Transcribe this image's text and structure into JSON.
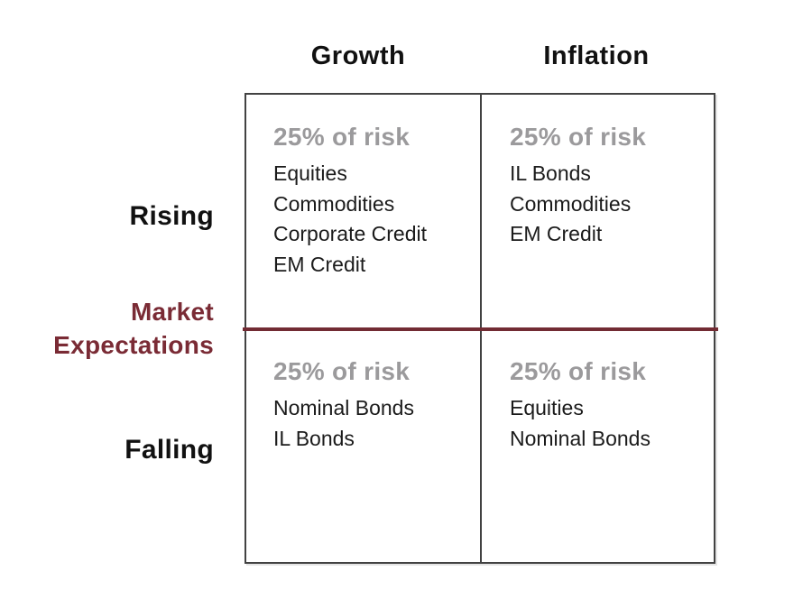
{
  "matrix": {
    "column_headers": {
      "growth": "Growth",
      "inflation": "Inflation"
    },
    "row_headers": {
      "rising": "Rising",
      "falling": "Falling"
    },
    "axis_label": {
      "line1": "Market",
      "line2": "Expectations"
    },
    "quadrants": [
      {
        "id": "growth-rising",
        "risk": "25% of risk",
        "assets": [
          "Equities",
          "Commodities",
          "Corporate Credit",
          "EM Credit"
        ]
      },
      {
        "id": "inflation-rising",
        "risk": "25% of risk",
        "assets": [
          "IL Bonds",
          "Commodities",
          "EM Credit"
        ]
      },
      {
        "id": "growth-falling",
        "risk": "25% of risk",
        "assets": [
          "Nominal Bonds",
          "IL Bonds"
        ]
      },
      {
        "id": "inflation-falling",
        "risk": "25% of risk",
        "assets": [
          "Equities",
          "Nominal Bonds"
        ]
      }
    ],
    "colors": {
      "accent_maroon_line": "#722b33",
      "accent_maroon_text": "#7a2b35",
      "risk_gray": "#9b9a9c",
      "border_gray": "#424242",
      "text_black": "#1b1b1b"
    }
  }
}
